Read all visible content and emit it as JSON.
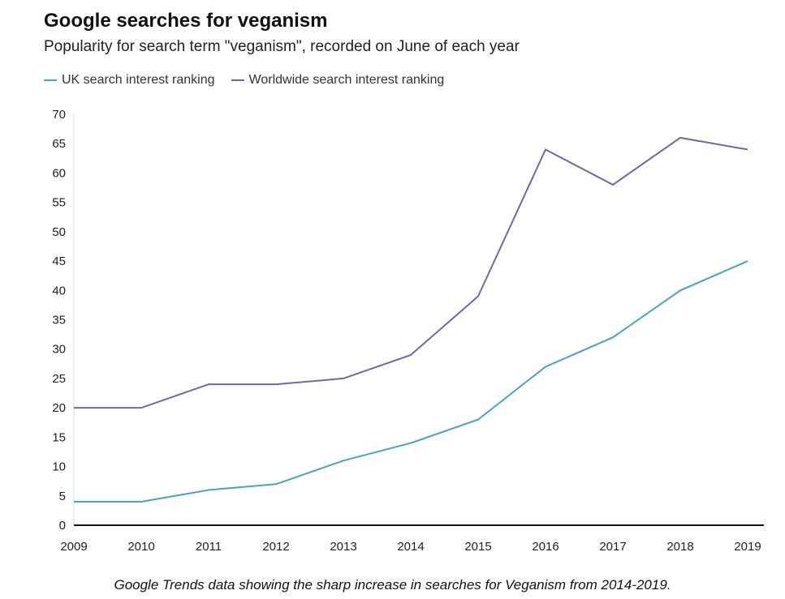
{
  "chart_data": {
    "type": "line",
    "title": "Google searches for veganism",
    "subtitle": "Popularity for search term \"veganism\", recorded on June of each year",
    "x": [
      "2009",
      "2010",
      "2011",
      "2012",
      "2013",
      "2014",
      "2015",
      "2016",
      "2017",
      "2018",
      "2019"
    ],
    "ylim": [
      0,
      70
    ],
    "yticks": [
      0,
      5,
      10,
      15,
      20,
      25,
      30,
      35,
      40,
      45,
      50,
      55,
      60,
      65,
      70
    ],
    "grid": false,
    "legend_position": "top-left",
    "series": [
      {
        "name": "UK search interest ranking",
        "color": "#4aa3bf",
        "values": [
          4,
          4,
          6,
          7,
          11,
          14,
          18,
          27,
          32,
          40,
          45
        ]
      },
      {
        "name": "Worldwide search interest ranking",
        "color": "#7b62a3",
        "values": [
          20,
          20,
          24,
          24,
          25,
          29,
          39,
          64,
          58,
          66,
          64
        ]
      }
    ]
  },
  "caption": "Google Trends data showing the sharp increase in searches for Veganism from 2014-2019."
}
